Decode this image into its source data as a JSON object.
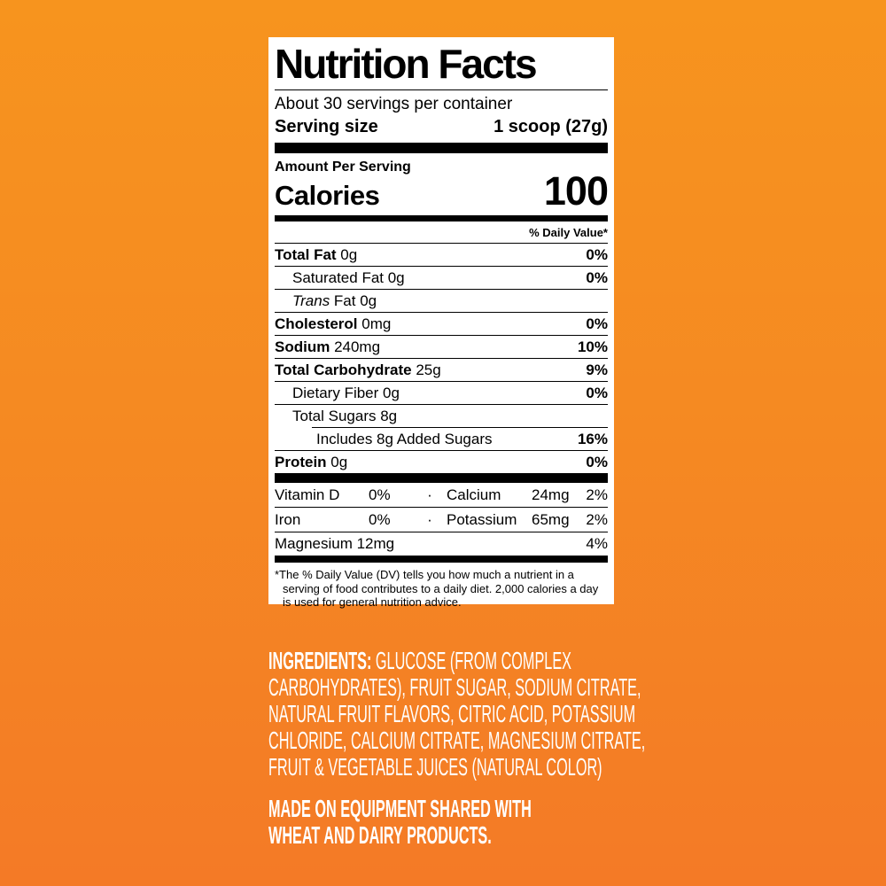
{
  "colors": {
    "background_top": "#F7941E",
    "background_bottom": "#F47A26",
    "label_background": "#FFFFFF",
    "label_text": "#000000",
    "text_on_orange": "#FFFFFF"
  },
  "label": {
    "title": "Nutrition Facts",
    "servings": "About 30 servings per container",
    "serving_size_label": "Serving size",
    "serving_size_value": "1 scoop (27g)",
    "amount_per_serving": "Amount Per Serving",
    "calories_label": "Calories",
    "calories_value": "100",
    "daily_value_header": "% Daily Value*",
    "nutrients": [
      {
        "name": "Total Fat",
        "amount": "0g",
        "dv": "0%",
        "bold": true,
        "indent": 0
      },
      {
        "name": "Saturated Fat",
        "amount": "0g",
        "dv": "0%",
        "bold": false,
        "indent": 1
      },
      {
        "name": "Trans",
        "italic": true,
        "amount": "Fat 0g",
        "dv": "",
        "bold": false,
        "indent": 1
      },
      {
        "name": "Cholesterol",
        "amount": "0mg",
        "dv": "0%",
        "bold": true,
        "indent": 0
      },
      {
        "name": "Sodium",
        "amount": "240mg",
        "dv": "10%",
        "bold": true,
        "indent": 0
      },
      {
        "name": "Total Carbohydrate",
        "amount": "25g",
        "dv": "9%",
        "bold": true,
        "indent": 0
      },
      {
        "name": "Dietary Fiber",
        "amount": "0g",
        "dv": "0%",
        "bold": false,
        "indent": 1
      },
      {
        "name": "Total Sugars",
        "amount": "8g",
        "dv": "",
        "bold": false,
        "indent": 1
      },
      {
        "name": "Includes 8g Added Sugars",
        "amount": "",
        "dv": "16%",
        "bold": false,
        "indent": 2,
        "border_indent": true
      },
      {
        "name": "Protein",
        "amount": "0g",
        "dv": "0%",
        "bold": true,
        "indent": 0
      }
    ],
    "micronutrients": [
      {
        "left_name": "Vitamin D",
        "left_value": "0%",
        "separator": "·",
        "right_name": "Calcium",
        "right_amount": "24mg",
        "right_dv": "2%"
      },
      {
        "left_name": "Iron",
        "left_value": "0%",
        "separator": "·",
        "right_name": "Potassium",
        "right_amount": "65mg",
        "right_dv": "2%"
      },
      {
        "left_name": "Magnesium 12mg",
        "right_dv": "4%",
        "wide": true
      }
    ],
    "footnote": "*The % Daily Value (DV) tells you how much a nutrient in a serving of food contributes to a daily diet. 2,000 calories a day is used for general nutrition advice."
  },
  "ingredients": {
    "heading": "INGREDIENTS:",
    "lines": [
      " GLUCOSE (FROM COMPLEX",
      "CARBOHYDRATES), FRUIT SUGAR, SODIUM CITRATE,",
      "NATURAL FRUIT FLAVORS, CITRIC ACID, POTASSIUM",
      "CHLORIDE, CALCIUM CITRATE, MAGNESIUM CITRATE,",
      "FRUIT & VEGETABLE JUICES (NATURAL COLOR)"
    ]
  },
  "allergen": {
    "lines": [
      "MADE ON EQUIPMENT SHARED WITH",
      "WHEAT AND DAIRY PRODUCTS."
    ]
  }
}
